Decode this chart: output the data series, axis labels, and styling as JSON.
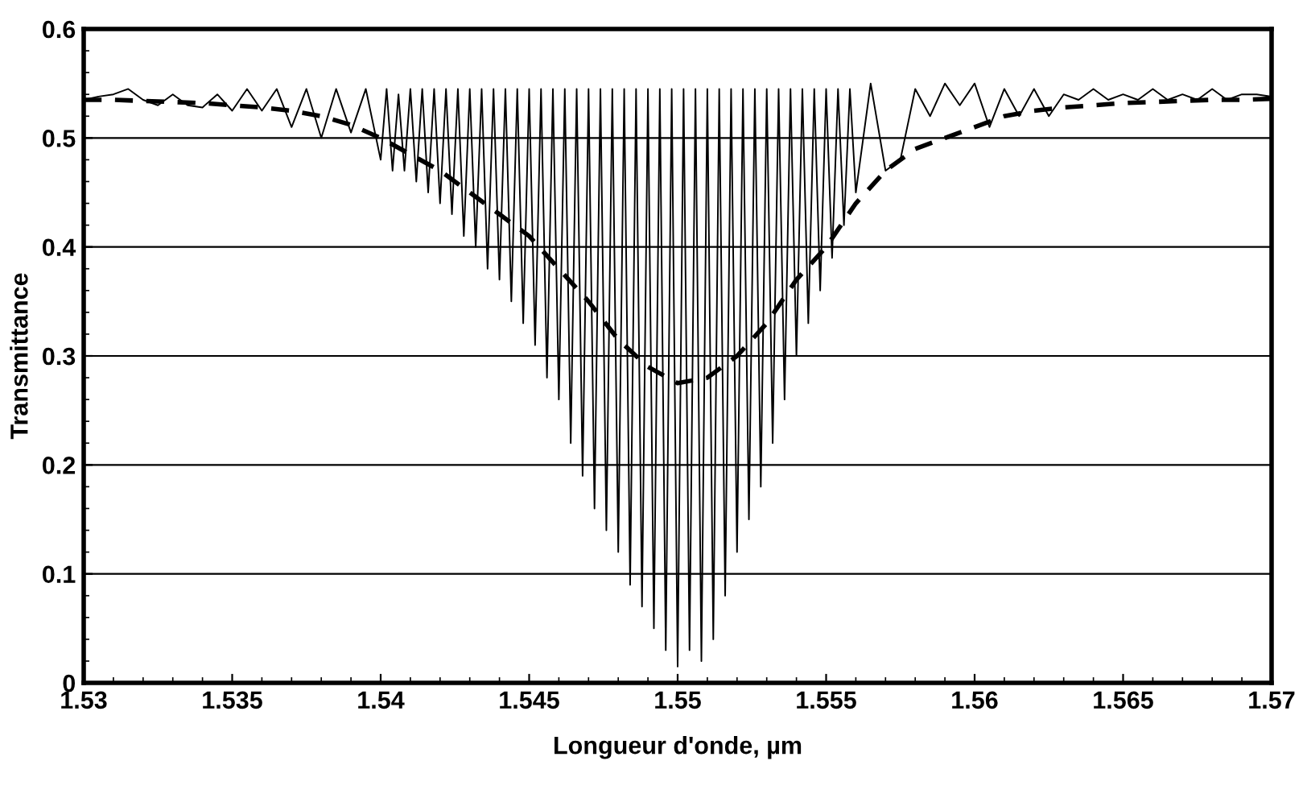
{
  "chart_data": {
    "type": "line",
    "xlabel": "Longueur d'onde, µm",
    "ylabel": "Transmittance",
    "xlim": [
      1.53,
      1.57
    ],
    "xticks": [
      1.53,
      1.535,
      1.54,
      1.545,
      1.55,
      1.555,
      1.56,
      1.565,
      1.57
    ],
    "ylim": [
      0,
      0.6
    ],
    "yticks": [
      0,
      0.1,
      0.2,
      0.3,
      0.4,
      0.5,
      0.6
    ],
    "grid": "y",
    "legend": false,
    "series": [
      {
        "color": "#000000",
        "line_style": "solid",
        "x": [
          1.53,
          1.5305,
          1.531,
          1.5315,
          1.532,
          1.5325,
          1.533,
          1.5335,
          1.534,
          1.5345,
          1.535,
          1.5355,
          1.536,
          1.5365,
          1.537,
          1.5375,
          1.538,
          1.5385,
          1.539,
          1.5395,
          1.54,
          1.5402,
          1.5404,
          1.5406,
          1.5408,
          1.541,
          1.5412,
          1.5414,
          1.5416,
          1.5418,
          1.542,
          1.5422,
          1.5424,
          1.5426,
          1.5428,
          1.543,
          1.5432,
          1.5434,
          1.5436,
          1.5438,
          1.544,
          1.5442,
          1.5444,
          1.5446,
          1.5448,
          1.545,
          1.5452,
          1.5454,
          1.5456,
          1.5458,
          1.546,
          1.5462,
          1.5464,
          1.5466,
          1.5468,
          1.547,
          1.5472,
          1.5474,
          1.5476,
          1.5478,
          1.548,
          1.5482,
          1.5484,
          1.5486,
          1.5488,
          1.549,
          1.5492,
          1.5494,
          1.5496,
          1.5498,
          1.55,
          1.5502,
          1.5504,
          1.5506,
          1.5508,
          1.551,
          1.5512,
          1.5514,
          1.5516,
          1.5518,
          1.552,
          1.5522,
          1.5524,
          1.5526,
          1.5528,
          1.553,
          1.5532,
          1.5534,
          1.5536,
          1.5538,
          1.554,
          1.5542,
          1.5544,
          1.5546,
          1.5548,
          1.555,
          1.5552,
          1.5554,
          1.5556,
          1.5558,
          1.556,
          1.5565,
          1.557,
          1.5575,
          1.558,
          1.5585,
          1.559,
          1.5595,
          1.56,
          1.5605,
          1.561,
          1.5615,
          1.562,
          1.5625,
          1.563,
          1.5635,
          1.564,
          1.5645,
          1.565,
          1.5655,
          1.566,
          1.5665,
          1.567,
          1.5675,
          1.568,
          1.5685,
          1.569,
          1.5695,
          1.57
        ],
        "values": [
          0.535,
          0.538,
          0.54,
          0.545,
          0.535,
          0.53,
          0.54,
          0.53,
          0.528,
          0.54,
          0.525,
          0.545,
          0.525,
          0.545,
          0.51,
          0.545,
          0.5,
          0.545,
          0.505,
          0.545,
          0.48,
          0.545,
          0.47,
          0.54,
          0.47,
          0.545,
          0.46,
          0.545,
          0.45,
          0.545,
          0.44,
          0.545,
          0.43,
          0.545,
          0.41,
          0.545,
          0.4,
          0.545,
          0.38,
          0.545,
          0.37,
          0.545,
          0.35,
          0.545,
          0.33,
          0.545,
          0.31,
          0.545,
          0.28,
          0.545,
          0.26,
          0.545,
          0.22,
          0.545,
          0.19,
          0.545,
          0.16,
          0.545,
          0.14,
          0.545,
          0.12,
          0.545,
          0.09,
          0.545,
          0.07,
          0.545,
          0.05,
          0.545,
          0.03,
          0.545,
          0.015,
          0.545,
          0.03,
          0.545,
          0.02,
          0.545,
          0.04,
          0.545,
          0.08,
          0.545,
          0.12,
          0.545,
          0.15,
          0.545,
          0.18,
          0.545,
          0.22,
          0.545,
          0.26,
          0.545,
          0.3,
          0.545,
          0.33,
          0.545,
          0.36,
          0.545,
          0.39,
          0.545,
          0.42,
          0.545,
          0.45,
          0.55,
          0.47,
          0.48,
          0.545,
          0.52,
          0.55,
          0.53,
          0.55,
          0.51,
          0.545,
          0.52,
          0.545,
          0.52,
          0.54,
          0.535,
          0.545,
          0.535,
          0.54,
          0.535,
          0.545,
          0.535,
          0.54,
          0.535,
          0.545,
          0.535,
          0.54,
          0.54,
          0.538
        ]
      },
      {
        "color": "#000000",
        "line_style": "dashed",
        "x": [
          1.53,
          1.531,
          1.532,
          1.533,
          1.534,
          1.535,
          1.536,
          1.537,
          1.538,
          1.539,
          1.54,
          1.541,
          1.542,
          1.543,
          1.544,
          1.545,
          1.546,
          1.547,
          1.548,
          1.549,
          1.55,
          1.551,
          1.552,
          1.553,
          1.554,
          1.555,
          1.556,
          1.557,
          1.558,
          1.559,
          1.56,
          1.561,
          1.562,
          1.563,
          1.564,
          1.565,
          1.566,
          1.567,
          1.568,
          1.569,
          1.57
        ],
        "values": [
          0.535,
          0.535,
          0.534,
          0.533,
          0.532,
          0.53,
          0.528,
          0.525,
          0.52,
          0.512,
          0.5,
          0.485,
          0.47,
          0.45,
          0.43,
          0.41,
          0.38,
          0.35,
          0.315,
          0.29,
          0.275,
          0.28,
          0.3,
          0.33,
          0.37,
          0.4,
          0.44,
          0.47,
          0.49,
          0.5,
          0.51,
          0.52,
          0.525,
          0.528,
          0.53,
          0.532,
          0.533,
          0.534,
          0.535,
          0.535,
          0.536
        ]
      }
    ]
  }
}
